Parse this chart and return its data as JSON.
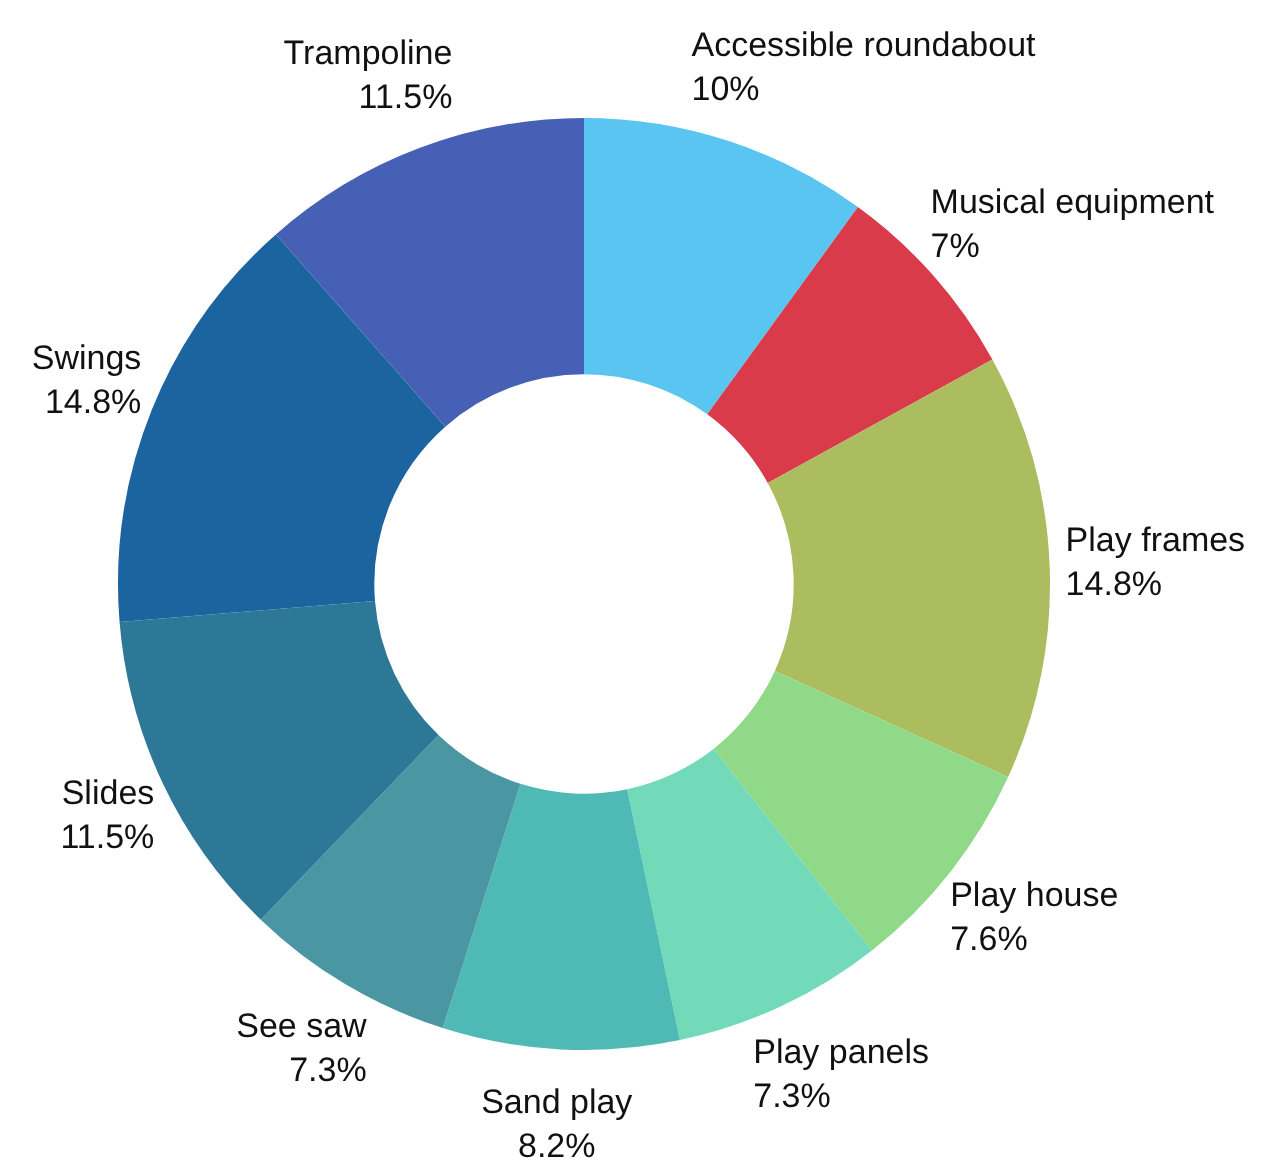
{
  "chart_data": {
    "type": "donut",
    "categories": [
      "Accessible roundabout",
      "Musical equipment",
      "Play frames",
      "Play house",
      "Play panels",
      "Sand play",
      "See saw",
      "Slides",
      "Swings",
      "Trampoline"
    ],
    "values": [
      10,
      7,
      14.8,
      7.6,
      7.3,
      8.2,
      7.3,
      11.5,
      14.8,
      11.5
    ],
    "value_labels": [
      "10%",
      "7%",
      "14.8%",
      "7.6%",
      "7.3%",
      "8.2%",
      "7.3%",
      "11.5%",
      "14.8%",
      "11.5%"
    ],
    "colors": [
      "#5bc5f2",
      "#d93b4a",
      "#abbd5f",
      "#8fd989",
      "#72dab8",
      "#4fbab5",
      "#4a97a3",
      "#2e7897",
      "#1c64a0",
      "#4660b5"
    ],
    "legend": false
  }
}
